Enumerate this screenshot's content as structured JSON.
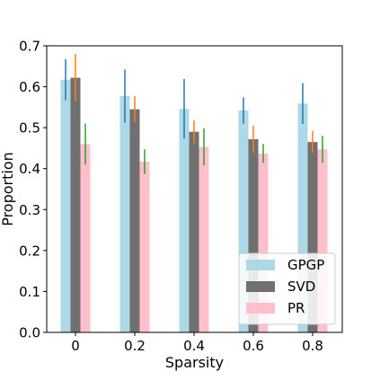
{
  "chart_data": {
    "type": "bar",
    "title": "",
    "xlabel": "Sparsity",
    "ylabel": "Proportion",
    "categories": [
      "0",
      "0.2",
      "0.4",
      "0.6",
      "0.8"
    ],
    "ylim": [
      0.0,
      0.7
    ],
    "yticks": [
      "0.0",
      "0.1",
      "0.2",
      "0.3",
      "0.4",
      "0.5",
      "0.6",
      "0.7"
    ],
    "grid": false,
    "legend_position": "bottom-right",
    "series": [
      {
        "name": "GPGP",
        "color": "#add8e6",
        "error_color": "#1f77b4",
        "values": [
          0.617,
          0.577,
          0.546,
          0.542,
          0.559
        ],
        "errors": [
          0.05,
          0.065,
          0.073,
          0.032,
          0.05
        ]
      },
      {
        "name": "SVD",
        "color": "#707070",
        "error_color": "#ff7f0e",
        "values": [
          0.622,
          0.545,
          0.49,
          0.472,
          0.465
        ],
        "errors": [
          0.058,
          0.032,
          0.028,
          0.033,
          0.027
        ]
      },
      {
        "name": "PR",
        "color": "#ffc0cb",
        "error_color": "#2ca02c",
        "values": [
          0.46,
          0.417,
          0.453,
          0.437,
          0.447
        ],
        "errors": [
          0.05,
          0.03,
          0.045,
          0.023,
          0.033
        ]
      }
    ]
  }
}
